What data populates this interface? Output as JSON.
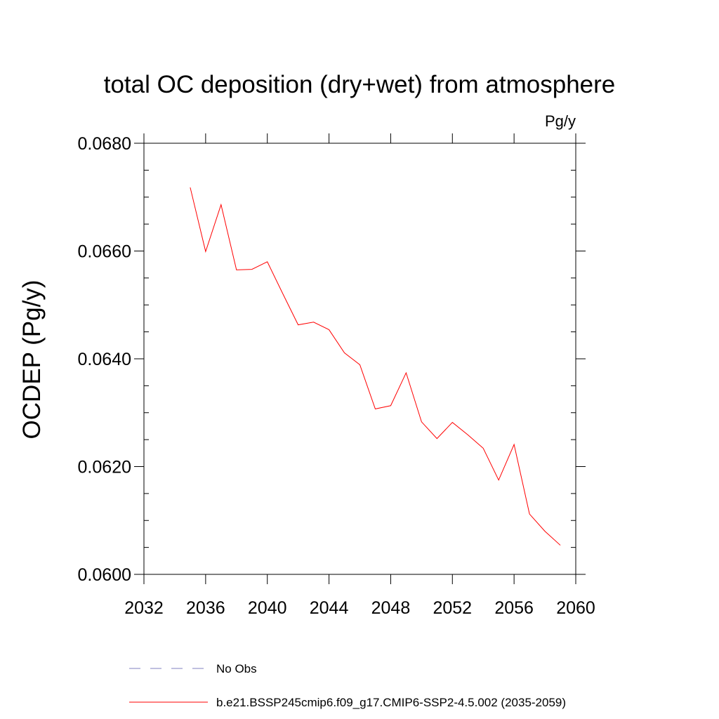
{
  "chart_data": {
    "type": "line",
    "title": "total OC deposition (dry+wet) from atmosphere",
    "units": "Pg/y",
    "ylabel": "OCDEP  (Pg/y)",
    "xlabel": "",
    "xlim": [
      2032,
      2060
    ],
    "ylim": [
      0.06,
      0.068
    ],
    "x_ticks": [
      2032,
      2036,
      2040,
      2044,
      2048,
      2052,
      2056,
      2060
    ],
    "x_tick_labels": [
      "2032",
      "2036",
      "2040",
      "2044",
      "2048",
      "2052",
      "2056",
      "2060"
    ],
    "y_ticks": [
      0.06,
      0.062,
      0.064,
      0.066,
      0.068
    ],
    "y_tick_labels": [
      "0.0600",
      "0.0620",
      "0.0640",
      "0.0660",
      "0.0680"
    ],
    "grid": false,
    "series": [
      {
        "name": "b.e21.BSSP245cmip6.f09_g17.CMIP6-SSP2-4.5.002 (2035-2059)",
        "color": "#ff0000",
        "style": "solid",
        "x": [
          2035,
          2036,
          2037,
          2038,
          2039,
          2040,
          2041,
          2042,
          2043,
          2044,
          2045,
          2046,
          2047,
          2048,
          2049,
          2050,
          2051,
          2052,
          2053,
          2054,
          2055,
          2056,
          2057,
          2058,
          2059
        ],
        "y": [
          0.06718,
          0.06599,
          0.06686,
          0.06565,
          0.06566,
          0.0658,
          0.06521,
          0.06463,
          0.06468,
          0.06454,
          0.06411,
          0.06389,
          0.06307,
          0.06313,
          0.06374,
          0.06283,
          0.06252,
          0.06282,
          0.06259,
          0.06234,
          0.06175,
          0.06241,
          0.06112,
          0.0608,
          0.06054
        ]
      }
    ],
    "legend": [
      {
        "label": "No Obs",
        "color": "#8080c0",
        "style": "dashed"
      },
      {
        "label": "b.e21.BSSP245cmip6.f09_g17.CMIP6-SSP2-4.5.002 (2035-2059)",
        "color": "#ff0000",
        "style": "solid"
      }
    ],
    "legend_position": "bottom"
  }
}
